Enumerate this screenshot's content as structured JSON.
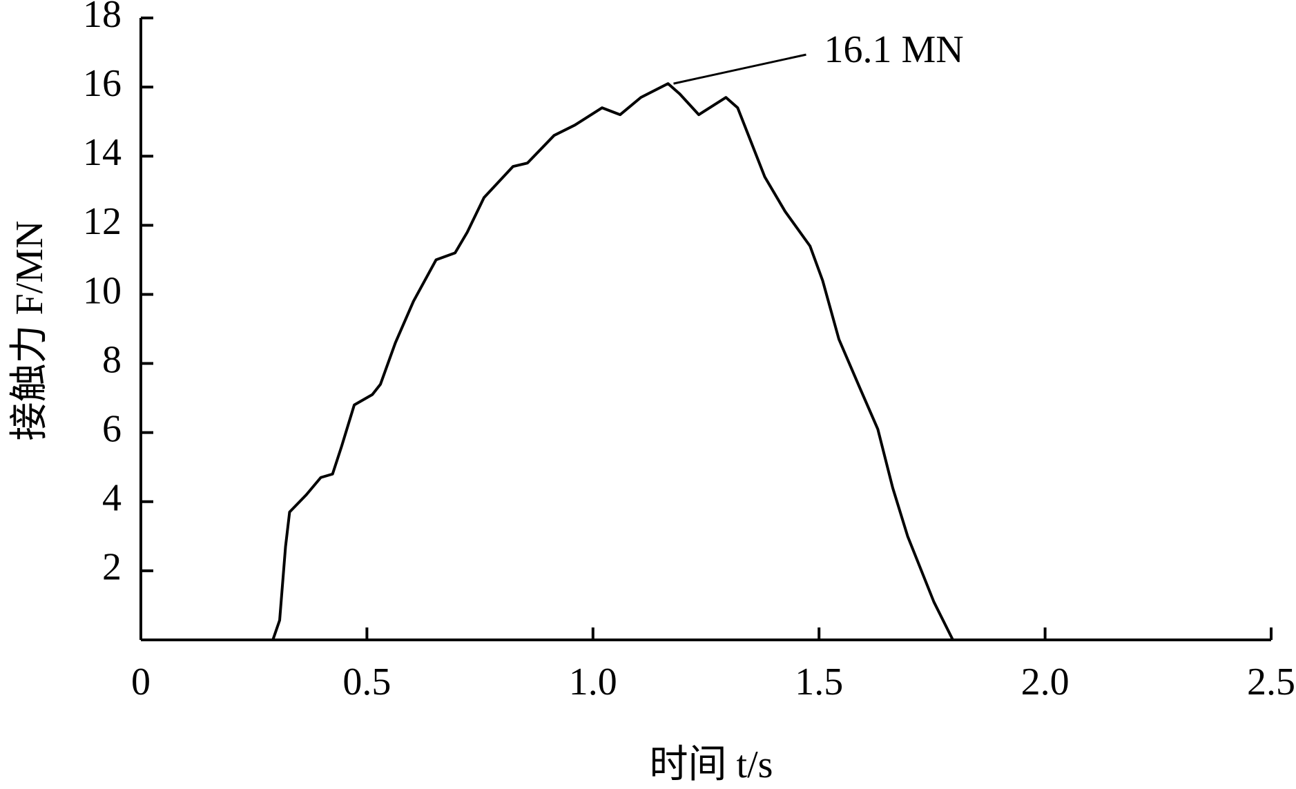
{
  "chart_data": {
    "type": "line",
    "xlabel": "时间 t/s",
    "ylabel": "接触力 F/MN",
    "x": [
      0,
      0.292,
      0.307,
      0.32,
      0.329,
      0.366,
      0.398,
      0.424,
      0.444,
      0.472,
      0.512,
      0.53,
      0.563,
      0.603,
      0.653,
      0.695,
      0.722,
      0.759,
      0.823,
      0.855,
      0.914,
      0.96,
      1.02,
      1.06,
      1.106,
      1.166,
      1.192,
      1.234,
      1.294,
      1.32,
      1.38,
      1.425,
      1.48,
      1.508,
      1.544,
      1.59,
      1.63,
      1.663,
      1.696,
      1.754,
      1.796
    ],
    "values": [
      0,
      0,
      0.57,
      2.7,
      3.7,
      4.2,
      4.7,
      4.8,
      5.6,
      6.8,
      7.1,
      7.4,
      8.6,
      9.8,
      11.0,
      11.2,
      11.8,
      12.8,
      13.7,
      13.8,
      14.6,
      14.9,
      15.4,
      15.2,
      15.7,
      16.1,
      15.8,
      15.2,
      15.7,
      15.4,
      13.4,
      12.4,
      11.4,
      10.4,
      8.7,
      7.3,
      6.1,
      4.4,
      3.0,
      1.1,
      0
    ],
    "color": "#000000",
    "annotation": "16.1 MN",
    "xlim": [
      0,
      2.5
    ],
    "xticks": [
      0,
      0.5,
      {
        "value": 1,
        "label": "1.0"
      },
      1.5,
      {
        "value": 2,
        "label": "2.0"
      },
      2.5
    ],
    "ylim": [
      0,
      18
    ],
    "yticks": [
      2,
      4,
      6,
      8,
      10,
      12,
      14,
      16,
      18
    ]
  }
}
